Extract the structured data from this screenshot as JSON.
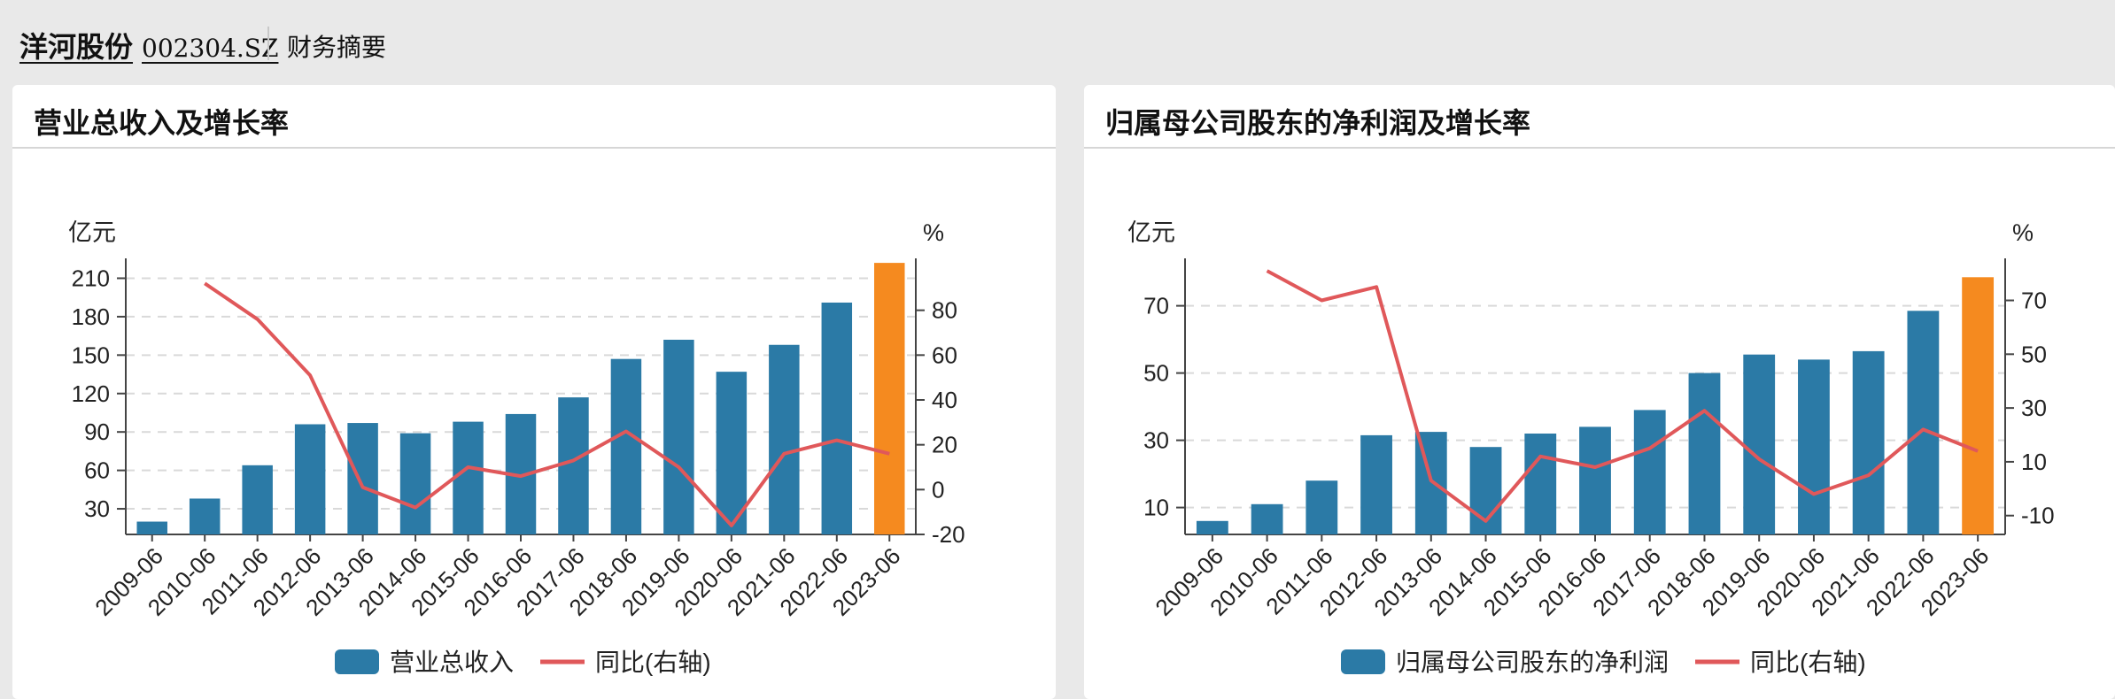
{
  "header": {
    "stock_name": "洋河股份",
    "stock_code": "002304.SZ",
    "section": "财务摘要"
  },
  "colors": {
    "bar": "#2b7aa6",
    "bar_highlight": "#f58a1f",
    "line": "#e0585a",
    "grid": "#d9d9d9",
    "axis": "#444444"
  },
  "chart_data": [
    {
      "type": "bar",
      "title": "营业总收入及增长率",
      "left_unit": "亿元",
      "right_unit": "%",
      "categories": [
        "2009-06",
        "2010-06",
        "2011-06",
        "2012-06",
        "2013-06",
        "2014-06",
        "2015-06",
        "2016-06",
        "2017-06",
        "2018-06",
        "2019-06",
        "2020-06",
        "2021-06",
        "2022-06",
        "2023-06"
      ],
      "ylim": [
        10,
        220
      ],
      "yticks": [
        30,
        60,
        90,
        120,
        150,
        180,
        210
      ],
      "y2lim": [
        -20,
        100
      ],
      "y2ticks": [
        -20,
        0,
        20,
        40,
        60,
        80
      ],
      "grid": true,
      "legend": "bottom",
      "highlight_index": 14,
      "series": [
        {
          "name": "营业总收入",
          "type": "bar",
          "axis": "left",
          "values": [
            20,
            38,
            64,
            96,
            97,
            89,
            98,
            104,
            117,
            147,
            162,
            137,
            158,
            191,
            222
          ]
        },
        {
          "name": "同比(右轴)",
          "type": "line",
          "axis": "right",
          "values": [
            null,
            92,
            76,
            51,
            1,
            -8,
            10,
            6,
            13,
            26,
            10,
            -16,
            16,
            22,
            16
          ]
        }
      ]
    },
    {
      "type": "bar",
      "title": "归属母公司股东的净利润及增长率",
      "left_unit": "亿元",
      "right_unit": "%",
      "categories": [
        "2009-06",
        "2010-06",
        "2011-06",
        "2012-06",
        "2013-06",
        "2014-06",
        "2015-06",
        "2016-06",
        "2017-06",
        "2018-06",
        "2019-06",
        "2020-06",
        "2021-06",
        "2022-06",
        "2023-06"
      ],
      "ylim": [
        2,
        82
      ],
      "yticks": [
        10,
        30,
        50,
        70
      ],
      "y2lim": [
        -17,
        83
      ],
      "y2ticks": [
        -10,
        10,
        30,
        50,
        70
      ],
      "grid": true,
      "legend": "bottom",
      "highlight_index": 14,
      "series": [
        {
          "name": "归属母公司股东的净利润",
          "type": "bar",
          "axis": "left",
          "values": [
            6,
            11,
            18,
            31.5,
            32.5,
            28,
            32,
            34,
            39,
            50,
            55.5,
            54,
            56.5,
            68.5,
            78.5
          ]
        },
        {
          "name": "同比(右轴)",
          "type": "line",
          "axis": "right",
          "values": [
            null,
            81,
            70,
            75,
            3,
            -12,
            12,
            8,
            15,
            29,
            11,
            -2,
            5,
            22,
            14
          ]
        }
      ]
    }
  ]
}
